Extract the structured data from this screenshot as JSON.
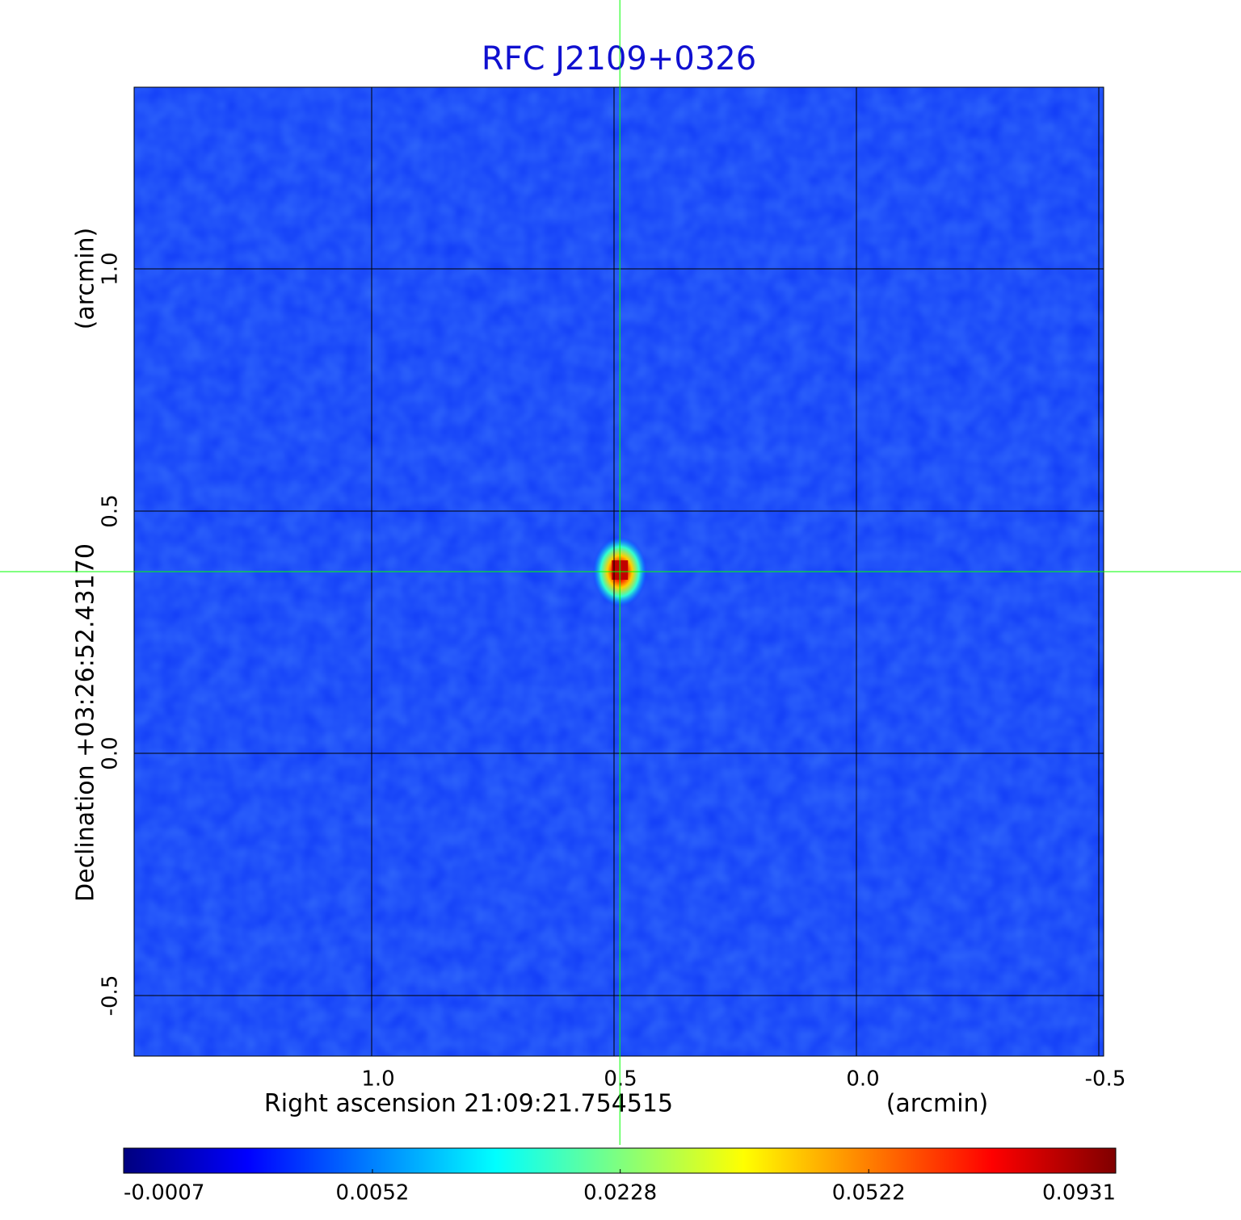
{
  "chart_data": {
    "type": "image",
    "title": "RFC J2109+0326",
    "xlabel": "Right ascension  21:09:21.754515",
    "xunit": "(arcmin)",
    "ylabel": "Declination  +03:26:52.43170",
    "yunit": "(arcmin)",
    "xlim": [
      1.49,
      -0.51
    ],
    "ylim": [
      -0.625,
      1.375
    ],
    "xticks": [
      {
        "value": 1,
        "label": "1.0"
      },
      0.5,
      {
        "value": 0,
        "label": "0.0"
      },
      -0.5
    ],
    "yticks": [
      -0.5,
      {
        "value": 0,
        "label": "0.0"
      },
      0.5,
      {
        "value": 1,
        "label": "1.0"
      }
    ],
    "grid": true,
    "crosshair": {
      "x": 0.488,
      "y": 0.375,
      "color": "#00ff00"
    },
    "colorbar": {
      "colormap": "jet",
      "scale": "sqrt",
      "lim": [
        -0.0007,
        0.0931
      ],
      "ticks": [
        -0.0007,
        0.0052,
        0.0228,
        0.0522,
        0.0931
      ]
    }
  }
}
